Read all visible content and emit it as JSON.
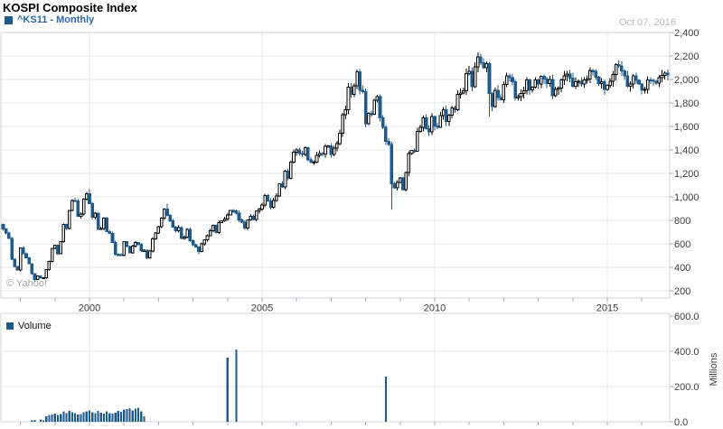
{
  "header": {
    "title": "KOSPI Composite Index",
    "legend_label": "^KS11 - Monthly",
    "date": "Oct 07, 2016"
  },
  "watermark": "© Yahoo!",
  "volume_panel": {
    "legend_label": "Volume",
    "axis_unit": "Millions"
  },
  "colors": {
    "candle_down": "#1e5a8c",
    "candle_up_fill": "#ffffff",
    "candle_up_stroke": "#000000",
    "legend_text": "#2e66a4",
    "border": "#ccd5de",
    "grid": "#e2e8ef",
    "tick": "#a7adb5",
    "axis_text": "#3c3c3c",
    "date_text": "#b9b9b9",
    "watermark_text": "#a3a3a3"
  },
  "chart_data": [
    {
      "type": "candlestick",
      "title": "KOSPI Composite Index",
      "series_label": "^KS11 - Monthly",
      "interval": "Monthly",
      "start_year": 1997,
      "start_month": 7,
      "first_open": 765,
      "closes": [
        726,
        691,
        647,
        470,
        408,
        376,
        567,
        516,
        481,
        430,
        345,
        298,
        326,
        310,
        312,
        380,
        450,
        562,
        587,
        516,
        618,
        765,
        732,
        883,
        970,
        966,
        836,
        855,
        980,
        1028,
        943,
        828,
        860,
        725,
        732,
        821,
        705,
        688,
        613,
        510,
        508,
        504,
        618,
        578,
        523,
        580,
        611,
        595,
        541,
        545,
        479,
        537,
        644,
        694,
        748,
        820,
        896,
        842,
        797,
        743,
        713,
        740,
        646,
        659,
        724,
        627,
        592,
        575,
        535,
        599,
        633,
        670,
        713,
        759,
        697,
        782,
        796,
        811,
        848,
        883,
        880,
        863,
        803,
        786,
        735,
        803,
        835,
        808,
        879,
        896,
        932,
        1011,
        966,
        912,
        970,
        1008,
        1111,
        1083,
        1221,
        1158,
        1297,
        1379,
        1399,
        1371,
        1360,
        1419,
        1317,
        1295,
        1297,
        1352,
        1371,
        1364,
        1432,
        1434,
        1360,
        1417,
        1452,
        1542,
        1700,
        1743,
        1933,
        1873,
        1946,
        2064,
        1906,
        1897,
        1624,
        1711,
        1704,
        1825,
        1852,
        1675,
        1594,
        1474,
        1448,
        1113,
        1076,
        1124,
        1162,
        1063,
        1206,
        1369,
        1395,
        1390,
        1557,
        1591,
        1673,
        1580,
        1555,
        1683,
        1602,
        1594,
        1693,
        1741,
        1641,
        1698,
        1759,
        1743,
        1873,
        1883,
        1905,
        2051,
        2069,
        1939,
        2107,
        2192,
        2142,
        2101,
        2133,
        1880,
        1770,
        1909,
        1848,
        1826,
        1956,
        2030,
        2014,
        1982,
        1843,
        1854,
        1882,
        1905,
        1996,
        1912,
        1933,
        1997,
        1962,
        2026,
        2005,
        1964,
        2001,
        1863,
        1914,
        1926,
        1997,
        2030,
        2045,
        2011,
        1941,
        1980,
        1986,
        1962,
        1995,
        2002,
        2076,
        2068,
        2020,
        1964,
        1981,
        1916,
        1949,
        1986,
        2041,
        2127,
        2114,
        2074,
        2030,
        1941,
        1963,
        2029,
        1992,
        1961,
        1912,
        1917,
        1996,
        1994,
        1983,
        1970,
        2016,
        2035,
        2052,
        2040
      ],
      "extremes": {
        "11": {
          "low": 277
        },
        "30": {
          "high": 1066
        },
        "57": {
          "high": 943
        },
        "68": {
          "low": 512
        },
        "123": {
          "high": 2085
        },
        "135": {
          "low": 892
        },
        "165": {
          "high": 2231
        },
        "169": {
          "low": 1684
        }
      },
      "ylim": [
        200,
        2400
      ],
      "y_tick_values": [
        2400,
        2200,
        2000,
        1800,
        1600,
        1400,
        1200,
        1000,
        800,
        600,
        400,
        200
      ],
      "y_tick_labels": [
        "2,400",
        "2,200",
        "2,000",
        "1,800",
        "1,600",
        "1,400",
        "1,200",
        "1,000",
        "800",
        "600",
        "400",
        "200"
      ],
      "x_labeled_years": [
        2000,
        2005,
        2010,
        2015
      ],
      "x_minor_tick_years": [
        1998,
        1999,
        2000,
        2001,
        2002,
        2003,
        2004,
        2005,
        2006,
        2007,
        2008,
        2009,
        2010,
        2011,
        2012,
        2013,
        2014,
        2015,
        2016
      ]
    },
    {
      "type": "bar",
      "name": "Volume",
      "unit": "Millions",
      "ylim": [
        0,
        600
      ],
      "y_tick_values": [
        600,
        400,
        200,
        0
      ],
      "y_tick_labels": [
        "600.0",
        "400.0",
        "200.0",
        "0.0"
      ],
      "values": [
        0,
        0,
        0,
        0,
        0,
        0,
        0,
        0,
        0,
        0,
        8,
        10,
        0,
        12,
        9,
        30,
        38,
        42,
        45,
        38,
        44,
        58,
        50,
        62,
        55,
        48,
        40,
        44,
        55,
        60,
        65,
        55,
        48,
        62,
        52,
        45,
        58,
        50,
        46,
        52,
        62,
        56,
        68,
        72,
        78,
        65,
        75,
        80,
        58,
        30,
        0,
        0,
        0,
        0,
        0,
        0,
        0,
        0,
        0,
        0,
        0,
        0,
        0,
        0,
        0,
        0,
        0,
        0,
        0,
        0,
        0,
        0,
        0,
        0,
        0,
        0,
        0,
        0,
        365,
        0,
        0,
        410,
        0,
        0,
        0,
        0,
        0,
        0,
        0,
        0,
        0,
        0,
        0,
        0,
        0,
        0,
        0,
        0,
        0,
        0,
        0,
        0,
        0,
        0,
        0,
        0,
        0,
        0,
        0,
        0,
        0,
        0,
        0,
        0,
        0,
        0,
        0,
        0,
        0,
        0,
        0,
        0,
        0,
        0,
        0,
        0,
        0,
        0,
        0,
        0,
        0,
        0,
        0,
        256,
        0,
        0,
        0,
        0,
        0,
        0,
        0,
        0,
        0,
        0,
        0,
        0,
        0,
        0,
        0,
        0,
        0,
        0,
        0,
        0,
        0,
        0,
        0,
        0,
        0,
        0,
        0,
        0,
        0,
        0,
        0,
        0,
        0,
        0,
        0,
        0,
        0,
        0,
        0,
        0,
        0,
        0,
        0,
        0,
        0,
        0,
        0,
        0,
        0,
        0,
        0,
        0,
        0,
        0,
        0,
        0,
        0,
        0,
        0,
        0,
        0,
        0,
        0,
        0,
        0,
        0,
        0,
        0,
        0,
        0,
        0,
        0,
        0,
        0,
        0,
        0,
        0,
        0,
        0,
        0,
        0,
        0,
        0,
        0,
        0,
        0,
        0,
        0,
        0,
        0,
        0,
        0,
        0,
        0,
        0,
        0,
        0,
        0
      ]
    }
  ]
}
